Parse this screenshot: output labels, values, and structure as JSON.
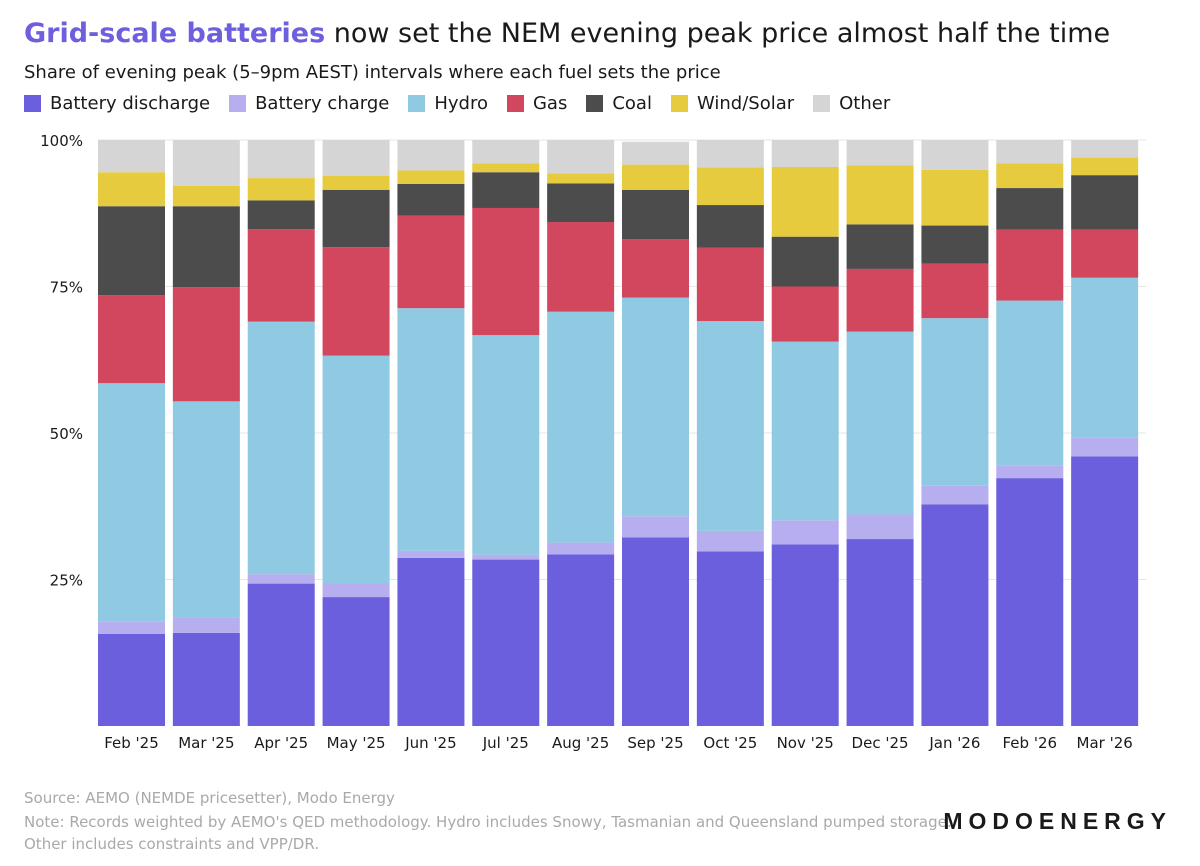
{
  "header": {
    "title_highlight": "Grid-scale batteries",
    "title_rest": "now set the NEM evening peak price almost half the time",
    "subtitle": "Share of evening peak (5–9pm AEST) intervals where each fuel sets the price"
  },
  "legend": [
    {
      "label": "Battery discharge",
      "color": "#6c5fdd"
    },
    {
      "label": "Battery charge",
      "color": "#b7aef0"
    },
    {
      "label": "Hydro",
      "color": "#8fc9e2"
    },
    {
      "label": "Gas",
      "color": "#d2475d"
    },
    {
      "label": "Coal",
      "color": "#4c4c4c"
    },
    {
      "label": "Wind/Solar",
      "color": "#e6cb3f"
    },
    {
      "label": "Other",
      "color": "#d5d5d5"
    }
  ],
  "chart_data": {
    "type": "bar",
    "stacked": true,
    "categories": [
      "Feb '25",
      "Mar '25",
      "Apr '25",
      "May '25",
      "Jun '25",
      "Jul '25",
      "Aug '25",
      "Sep '25",
      "Oct '25",
      "Nov '25",
      "Dec '25",
      "Jan '26",
      "Feb '26",
      "Mar '26"
    ],
    "series": [
      {
        "name": "Battery discharge",
        "color": "#6c5fdd",
        "values": [
          15.7,
          15.9,
          24.3,
          22.0,
          28.7,
          28.4,
          29.3,
          32.2,
          29.8,
          31.0,
          31.9,
          37.8,
          42.3,
          46.0
        ]
      },
      {
        "name": "Battery charge",
        "color": "#b7aef0",
        "values": [
          2.1,
          2.6,
          1.6,
          2.4,
          1.2,
          0.8,
          2.0,
          3.6,
          3.5,
          4.1,
          4.2,
          3.2,
          2.1,
          3.2
        ]
      },
      {
        "name": "Hydro",
        "color": "#8fc9e2",
        "values": [
          40.7,
          36.9,
          43.1,
          38.8,
          41.4,
          37.5,
          39.4,
          37.3,
          35.8,
          30.5,
          31.2,
          28.6,
          28.2,
          27.3
        ]
      },
      {
        "name": "Gas",
        "color": "#d2475d",
        "values": [
          15.0,
          19.5,
          15.8,
          18.5,
          15.8,
          21.7,
          15.3,
          10.0,
          12.5,
          9.4,
          10.7,
          9.3,
          12.1,
          8.2
        ]
      },
      {
        "name": "Coal",
        "color": "#4c4c4c",
        "values": [
          15.2,
          13.8,
          4.9,
          9.8,
          5.4,
          6.1,
          6.6,
          8.4,
          7.3,
          8.5,
          7.6,
          6.5,
          7.1,
          9.3
        ]
      },
      {
        "name": "Wind/Solar",
        "color": "#e6cb3f",
        "values": [
          5.8,
          3.5,
          3.8,
          2.4,
          2.3,
          1.5,
          1.7,
          4.3,
          6.4,
          11.9,
          10.1,
          9.5,
          4.2,
          3.0
        ]
      },
      {
        "name": "Other",
        "color": "#d5d5d5",
        "values": [
          5.5,
          7.8,
          6.5,
          6.1,
          5.2,
          4.0,
          5.7,
          3.9,
          4.7,
          4.6,
          4.3,
          5.1,
          4.0,
          3.0
        ]
      }
    ],
    "ylim": [
      0,
      100
    ],
    "yticks": [
      25,
      50,
      75,
      100
    ],
    "ytick_labels": [
      "25%",
      "50%",
      "75%",
      "100%"
    ],
    "grid": true,
    "legend_position": "top-left"
  },
  "footer": {
    "source": "Source: AEMO (NEMDE pricesetter), Modo Energy",
    "note_line1": "Note: Records weighted by AEMO's QED methodology. Hydro includes Snowy, Tasmanian and Queensland pumped storage.",
    "note_line2": "Other includes constraints and VPP/DR.",
    "logo": "MODOENERGY"
  }
}
